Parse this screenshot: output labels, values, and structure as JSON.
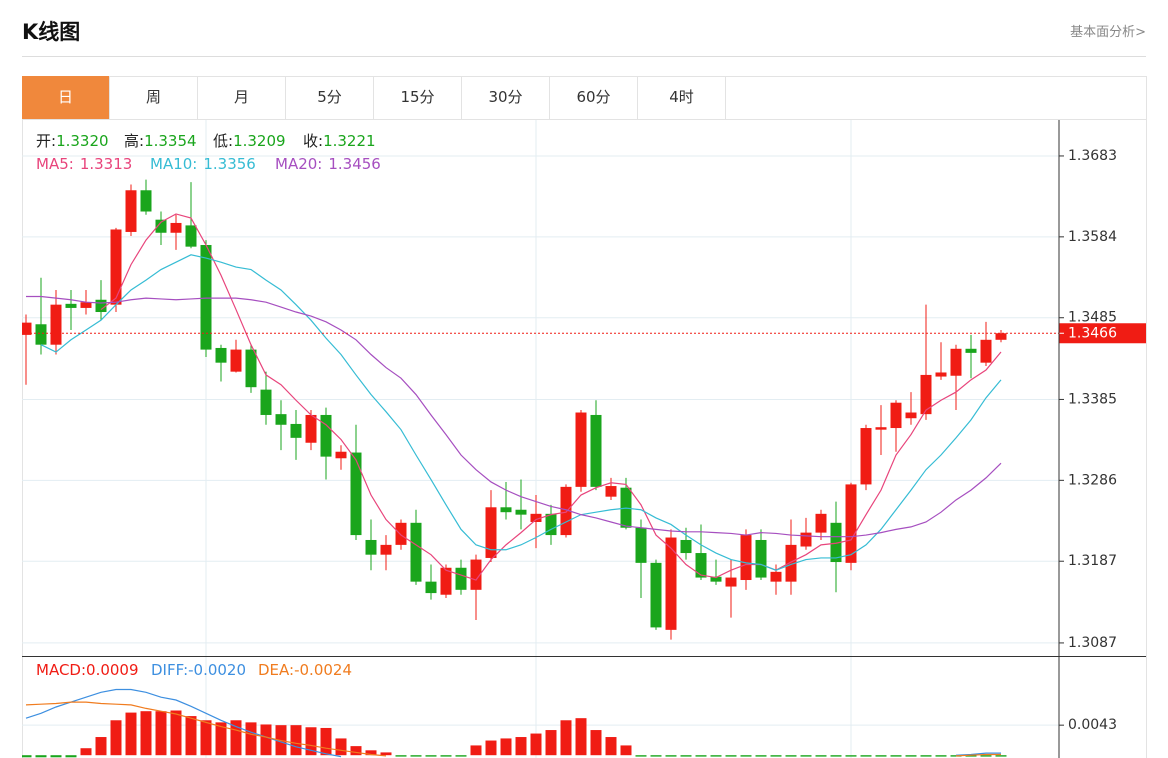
{
  "header": {
    "title": "K线图",
    "link": "基本面分析>"
  },
  "tabs": [
    "日",
    "周",
    "月",
    "5分",
    "15分",
    "30分",
    "60分",
    "4时"
  ],
  "active_tab": 0,
  "chart_data": [
    {
      "type": "candlestick",
      "up_color": "#f01c14",
      "down_color": "#1aa51c",
      "ylim": [
        1.3071,
        1.3727
      ],
      "yticks": [
        1.3087,
        1.3187,
        1.3286,
        1.3385,
        1.3485,
        1.3584,
        1.3683
      ],
      "grid": true,
      "last_price": 1.3466,
      "legend": [
        {
          "label": "开:",
          "value": "1.3320"
        },
        {
          "label": "高:",
          "value": "1.3354"
        },
        {
          "label": "低:",
          "value": "1.3209"
        },
        {
          "label": "收:",
          "value": "1.3221"
        }
      ],
      "open": [
        1.3464,
        1.3477,
        1.3452,
        1.3502,
        1.3497,
        1.3507,
        1.3501,
        1.359,
        1.3641,
        1.3605,
        1.3589,
        1.3598,
        1.3574,
        1.3448,
        1.3419,
        1.3446,
        1.3397,
        1.3367,
        1.3355,
        1.3332,
        1.3366,
        1.3313,
        1.332,
        1.3213,
        1.3195,
        1.3207,
        1.3234,
        1.3162,
        1.3146,
        1.3179,
        1.3152,
        1.3191,
        1.3253,
        1.325,
        1.3235,
        1.3245,
        1.3219,
        1.3278,
        1.3366,
        1.3266,
        1.3277,
        1.3228,
        1.3185,
        1.3103,
        1.3213,
        1.3197,
        1.3168,
        1.3156,
        1.3164,
        1.3213,
        1.3162,
        1.3162,
        1.3205,
        1.3222,
        1.3234,
        1.3185,
        1.3281,
        1.3348,
        1.335,
        1.3362,
        1.3367,
        1.3413,
        1.3414,
        1.3447,
        1.343,
        1.3458
      ],
      "high": [
        1.3489,
        1.3534,
        1.3519,
        1.3519,
        1.3519,
        1.3531,
        1.3595,
        1.3648,
        1.3654,
        1.3615,
        1.3611,
        1.3651,
        1.358,
        1.3452,
        1.3458,
        1.3452,
        1.3419,
        1.3384,
        1.3372,
        1.3372,
        1.3375,
        1.3329,
        1.3354,
        1.3238,
        1.3219,
        1.3238,
        1.325,
        1.3183,
        1.3183,
        1.3189,
        1.3195,
        1.3274,
        1.3284,
        1.3287,
        1.3268,
        1.3256,
        1.3281,
        1.3372,
        1.3384,
        1.3289,
        1.3289,
        1.3238,
        1.3189,
        1.3226,
        1.3228,
        1.3232,
        1.3189,
        1.3189,
        1.3226,
        1.3226,
        1.3183,
        1.3238,
        1.324,
        1.325,
        1.326,
        1.3283,
        1.3354,
        1.3378,
        1.3384,
        1.3394,
        1.3501,
        1.3455,
        1.3452,
        1.3464,
        1.348,
        1.347
      ],
      "low": [
        1.3403,
        1.344,
        1.344,
        1.347,
        1.3489,
        1.3482,
        1.3492,
        1.3585,
        1.3611,
        1.3574,
        1.3568,
        1.357,
        1.3437,
        1.3407,
        1.3418,
        1.3393,
        1.3354,
        1.3323,
        1.3311,
        1.3323,
        1.3287,
        1.3299,
        1.3213,
        1.3176,
        1.3176,
        1.3201,
        1.3158,
        1.314,
        1.3142,
        1.3146,
        1.3115,
        1.3186,
        1.3238,
        1.3226,
        1.3203,
        1.3207,
        1.3216,
        1.3272,
        1.3274,
        1.3262,
        1.3226,
        1.3142,
        1.3103,
        1.3091,
        1.3189,
        1.3164,
        1.3158,
        1.3118,
        1.3152,
        1.3164,
        1.3146,
        1.3146,
        1.3201,
        1.3213,
        1.3149,
        1.3176,
        1.3274,
        1.3317,
        1.3321,
        1.3354,
        1.336,
        1.3409,
        1.3372,
        1.3411,
        1.3426,
        1.3455
      ],
      "close": [
        1.3479,
        1.3452,
        1.3501,
        1.3497,
        1.3504,
        1.3492,
        1.3593,
        1.3641,
        1.3615,
        1.3589,
        1.3601,
        1.3572,
        1.3446,
        1.343,
        1.3446,
        1.34,
        1.3366,
        1.3354,
        1.3338,
        1.3366,
        1.3315,
        1.3321,
        1.3219,
        1.3195,
        1.3207,
        1.3234,
        1.3162,
        1.3148,
        1.3179,
        1.3152,
        1.3189,
        1.3253,
        1.3247,
        1.3244,
        1.3245,
        1.3219,
        1.3278,
        1.3369,
        1.3278,
        1.3279,
        1.3228,
        1.3185,
        1.3106,
        1.3216,
        1.3197,
        1.3167,
        1.3162,
        1.3167,
        1.3219,
        1.3167,
        1.3174,
        1.3207,
        1.3222,
        1.3245,
        1.3186,
        1.3281,
        1.335,
        1.3351,
        1.3381,
        1.3369,
        1.3415,
        1.3418,
        1.3447,
        1.3442,
        1.3458,
        1.3466
      ],
      "series": [
        {
          "name": "MA5:",
          "legend_value": "1.3313",
          "color": "#e8457c",
          "values": [
            null,
            null,
            null,
            null,
            null,
            1.3495,
            1.3509,
            1.355,
            1.358,
            1.3602,
            1.3612,
            1.3607,
            1.3574,
            1.3537,
            1.3495,
            1.3452,
            1.3415,
            1.3403,
            1.3384,
            1.3366,
            1.3354,
            1.3336,
            1.3311,
            1.3268,
            1.3238,
            1.3219,
            1.3207,
            1.3195,
            1.3176,
            1.317,
            1.3164,
            1.3189,
            1.3207,
            1.3222,
            1.3238,
            1.3244,
            1.3247,
            1.3268,
            1.3277,
            1.3283,
            1.3281,
            1.3256,
            1.3219,
            1.3203,
            1.3183,
            1.317,
            1.3167,
            1.3176,
            1.3183,
            1.3183,
            1.3176,
            1.3186,
            1.3195,
            1.3207,
            1.3209,
            1.3213,
            1.3244,
            1.3274,
            1.3317,
            1.3342,
            1.3372,
            1.3384,
            1.3394,
            1.3409,
            1.3421,
            1.3443
          ]
        },
        {
          "name": "MA10:",
          "legend_value": "1.3356",
          "color": "#36bcd4",
          "values": [
            null,
            1.3452,
            1.3443,
            1.3458,
            1.347,
            1.3482,
            1.3501,
            1.3519,
            1.3531,
            1.3544,
            1.3553,
            1.3562,
            1.3558,
            1.3553,
            1.3547,
            1.3544,
            1.3531,
            1.3519,
            1.3501,
            1.3482,
            1.346,
            1.344,
            1.3415,
            1.3391,
            1.337,
            1.3348,
            1.3317,
            1.3287,
            1.3256,
            1.3226,
            1.3207,
            1.3201,
            1.3201,
            1.3207,
            1.3216,
            1.3226,
            1.3235,
            1.3244,
            1.3247,
            1.325,
            1.3252,
            1.325,
            1.324,
            1.3232,
            1.3219,
            1.3207,
            1.3197,
            1.3189,
            1.3185,
            1.3183,
            1.3176,
            1.3183,
            1.3189,
            1.3191,
            1.3191,
            1.3195,
            1.3207,
            1.3226,
            1.325,
            1.3274,
            1.3299,
            1.3317,
            1.3338,
            1.336,
            1.3387,
            1.3409
          ]
        },
        {
          "name": "MA20:",
          "legend_value": "1.3456",
          "color": "#a64fc0",
          "values": [
            1.3511,
            1.3511,
            1.3509,
            1.3507,
            1.3504,
            1.3503,
            1.3504,
            1.3507,
            1.3509,
            1.3508,
            1.3507,
            1.3508,
            1.3509,
            1.3509,
            1.3509,
            1.3507,
            1.3504,
            1.3498,
            1.3492,
            1.3487,
            1.348,
            1.347,
            1.3458,
            1.344,
            1.3424,
            1.3411,
            1.3391,
            1.3366,
            1.3342,
            1.3317,
            1.3299,
            1.3284,
            1.3274,
            1.3266,
            1.326,
            1.3254,
            1.325,
            1.3244,
            1.324,
            1.3235,
            1.323,
            1.3228,
            1.3226,
            1.3224,
            1.3223,
            1.3223,
            1.3222,
            1.3221,
            1.3219,
            1.3222,
            1.3221,
            1.3219,
            1.3218,
            1.3217,
            1.3217,
            1.3217,
            1.3219,
            1.3222,
            1.3226,
            1.3229,
            1.3235,
            1.3247,
            1.3262,
            1.3274,
            1.3289,
            1.3307
          ]
        }
      ]
    },
    {
      "type": "macd",
      "ylim": [
        -0.0004,
        0.0142
      ],
      "yticks": [
        0.0043
      ],
      "grid": true,
      "histogram": {
        "name": "MACD:",
        "legend_value": "0.0009",
        "color": "#f01c14",
        "up_color": "#f01c14",
        "down_color": "#1aa51c",
        "values": [
          -0.0003,
          -0.0003,
          -0.0003,
          -0.0003,
          0.001,
          0.0026,
          0.005,
          0.0061,
          0.0063,
          0.0063,
          0.0064,
          0.0056,
          0.005,
          0.0047,
          0.005,
          0.0047,
          0.0044,
          0.0043,
          0.0043,
          0.004,
          0.0039,
          0.0024,
          0.0013,
          0.0007,
          0.0004,
          -0.0002,
          -0.0002,
          -0.0002,
          -0.0002,
          -0.0002,
          0.0014,
          0.0021,
          0.0024,
          0.0026,
          0.0031,
          0.0036,
          0.005,
          0.0053,
          0.0036,
          0.0026,
          0.0014,
          -0.0002,
          -0.0002,
          -0.0002,
          -0.0002,
          -0.0002,
          -0.0002,
          -0.0002,
          -0.0002,
          -0.0002,
          -0.0002,
          -0.0002,
          -0.0002,
          -0.0002,
          -0.0002,
          -0.0002,
          -0.0002,
          -0.0002,
          -0.0002,
          -0.0002,
          -0.0002,
          -0.0002,
          -0.0002,
          -0.0002,
          -0.0002,
          -0.0002
        ]
      },
      "series": [
        {
          "name": "DIFF:",
          "legend_value": "-0.0020",
          "color": "#3d8fe0",
          "values": [
            0.0053,
            0.006,
            0.0069,
            0.0076,
            0.0083,
            0.009,
            0.0094,
            0.0094,
            0.009,
            0.0083,
            0.0079,
            0.007,
            0.006,
            0.005,
            0.0041,
            0.0033,
            0.0026,
            0.0019,
            0.0012,
            0.0007,
            0.0002,
            -0.0002,
            null,
            null,
            null,
            null,
            null,
            null,
            null,
            null,
            null,
            null,
            null,
            null,
            null,
            null,
            null,
            null,
            null,
            null,
            null,
            null,
            null,
            null,
            null,
            null,
            null,
            null,
            null,
            null,
            null,
            null,
            null,
            null,
            null,
            null,
            null,
            null,
            null,
            null,
            null,
            null,
            0.0,
            0.0001,
            0.0003,
            0.0003
          ]
        },
        {
          "name": "DEA:",
          "legend_value": "-0.0024",
          "color": "#f07c1f",
          "values": [
            0.0072,
            0.0073,
            0.0074,
            0.0076,
            0.0076,
            0.0074,
            0.0073,
            0.0072,
            0.0067,
            0.0063,
            0.0059,
            0.0053,
            0.0047,
            0.0041,
            0.0036,
            0.003,
            0.0026,
            0.0021,
            0.0017,
            0.0014,
            0.001,
            0.0007,
            0.0004,
            0.0001,
            -0.0001,
            null,
            null,
            null,
            null,
            null,
            null,
            null,
            null,
            null,
            null,
            null,
            null,
            null,
            null,
            null,
            null,
            null,
            null,
            null,
            null,
            null,
            null,
            null,
            null,
            null,
            null,
            null,
            null,
            null,
            null,
            null,
            null,
            null,
            null,
            null,
            null,
            null,
            -0.0001,
            0.0,
            0.0001,
            0.0001
          ]
        }
      ]
    }
  ]
}
